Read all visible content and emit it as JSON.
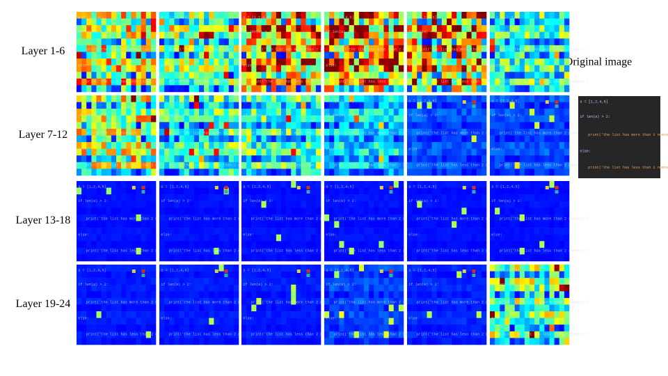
{
  "figure": {
    "row_labels": [
      "Layer 1-6",
      "Layer 7-12",
      "Layer 13-18",
      "Layer 19-24"
    ],
    "original_label": "Original image",
    "code_lines": [
      "a = [1,2,4,5]",
      "if len(a) > 2:",
      "print('the list has more than 2 numbers')",
      "else:",
      "print('the list has less than 2 numbers')"
    ]
  }
}
